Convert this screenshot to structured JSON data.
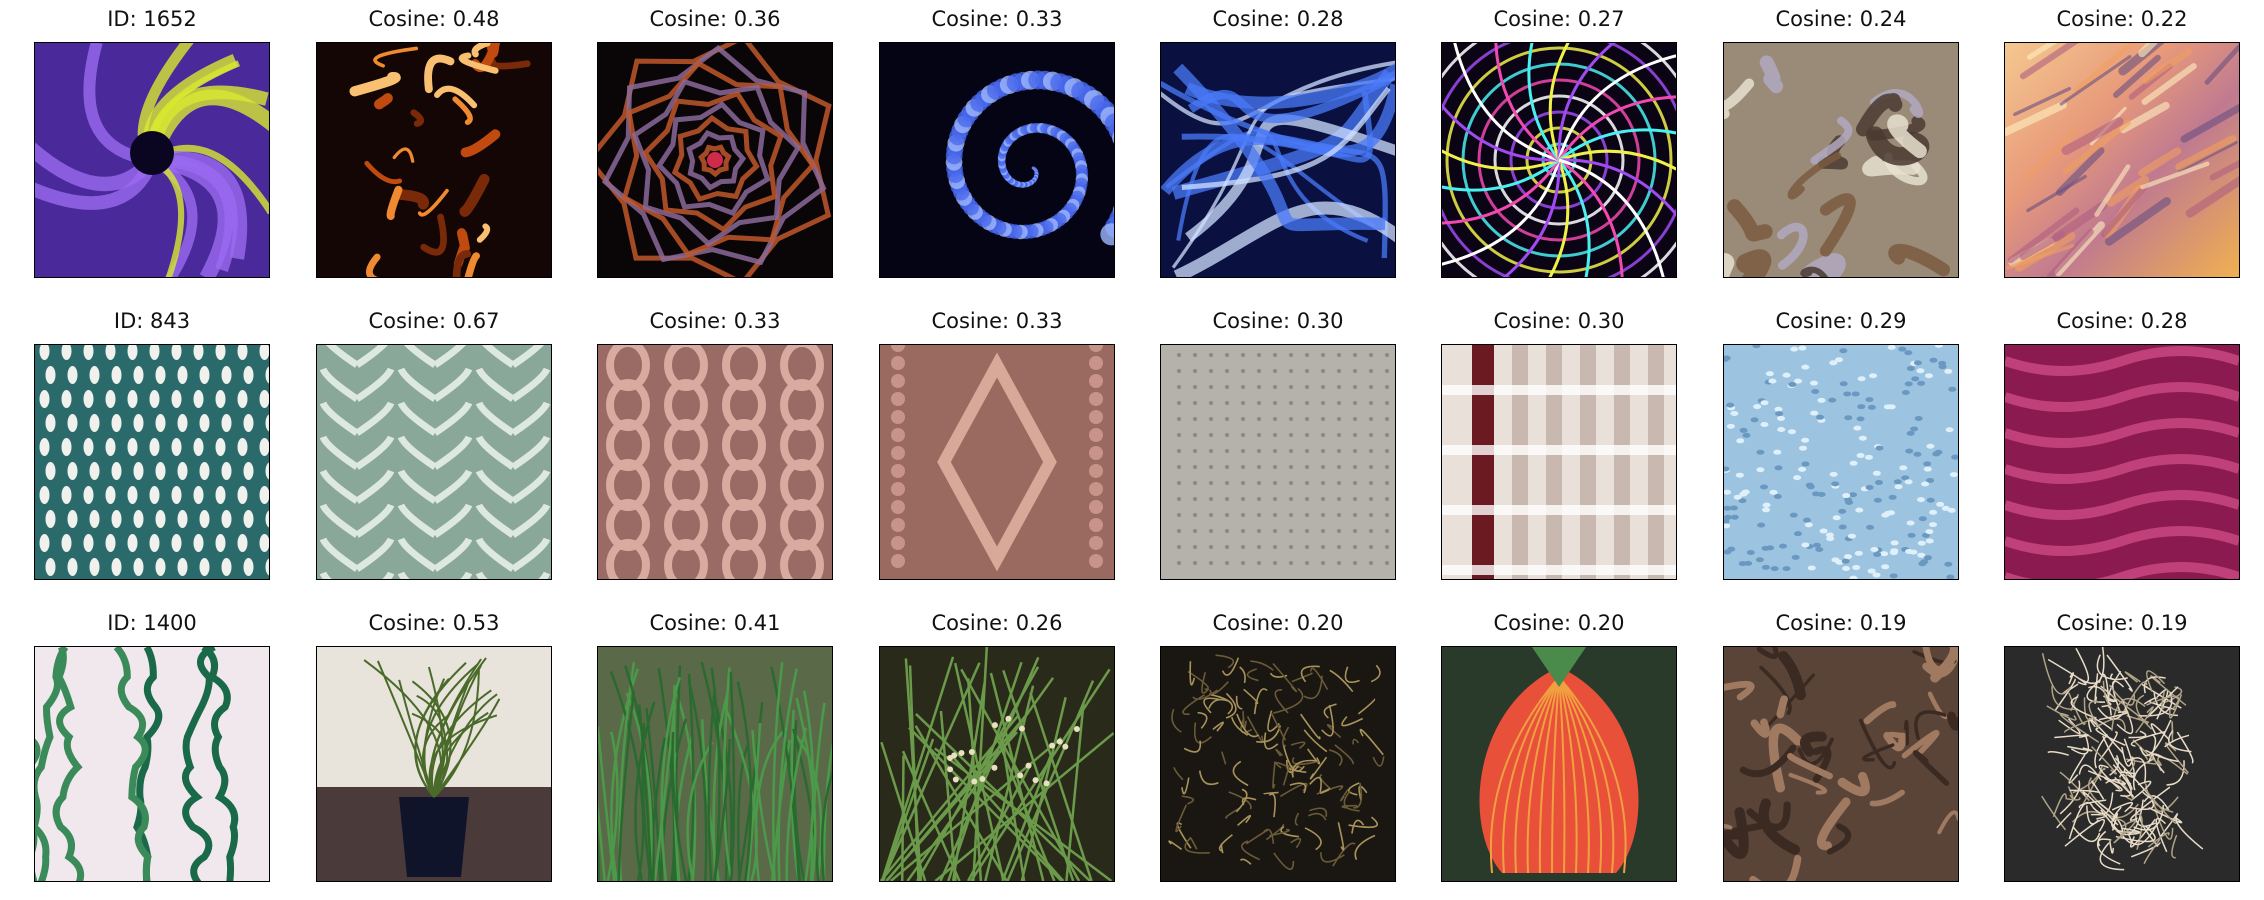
{
  "rows": [
    {
      "tiles": [
        {
          "title": "ID: 1652",
          "depicts": "purple-yellow-fractal"
        },
        {
          "title": "Cosine: 0.48",
          "depicts": "orange-fiery-fractal"
        },
        {
          "title": "Cosine: 0.36",
          "depicts": "dark-star-tunnel"
        },
        {
          "title": "Cosine: 0.33",
          "depicts": "blue-spiral-fractal"
        },
        {
          "title": "Cosine: 0.28",
          "depicts": "blue-light-swirls"
        },
        {
          "title": "Cosine: 0.27",
          "depicts": "psychedelic-spiral-web"
        },
        {
          "title": "Cosine: 0.24",
          "depicts": "marbled-swirl-texture"
        },
        {
          "title": "Cosine: 0.22",
          "depicts": "sunset-streak-clouds"
        }
      ]
    },
    {
      "tiles": [
        {
          "title": "ID: 843",
          "depicts": "teal-lace-knit"
        },
        {
          "title": "Cosine: 0.67",
          "depicts": "pale-green-leaf-lace-knit"
        },
        {
          "title": "Cosine: 0.33",
          "depicts": "pink-cable-knit"
        },
        {
          "title": "Cosine: 0.33",
          "depicts": "pink-diamond-cable-knit"
        },
        {
          "title": "Cosine: 0.30",
          "depicts": "grey-lace-shawl"
        },
        {
          "title": "Cosine: 0.30",
          "depicts": "white-maroon-woven-fabric"
        },
        {
          "title": "Cosine: 0.29",
          "depicts": "light-blue-knit"
        },
        {
          "title": "Cosine: 0.28",
          "depicts": "magenta-textured-knit"
        }
      ]
    },
    {
      "tiles": [
        {
          "title": "ID: 1400",
          "depicts": "curly-green-stems"
        },
        {
          "title": "Cosine: 0.53",
          "depicts": "potted-corkscrew-rush"
        },
        {
          "title": "Cosine: 0.41",
          "depicts": "green-rush-grass-clump"
        },
        {
          "title": "Cosine: 0.26",
          "depicts": "rush-flowers-in-grass"
        },
        {
          "title": "Cosine: 0.20",
          "depicts": "dried-root-mass"
        },
        {
          "title": "Cosine: 0.20",
          "depicts": "red-veined-flower-bell"
        },
        {
          "title": "Cosine: 0.19",
          "depicts": "brown-tangled-roots"
        },
        {
          "title": "Cosine: 0.19",
          "depicts": "white-root-ball"
        }
      ]
    }
  ],
  "colors": {
    "purple-yellow-fractal": "#6a3bd0",
    "orange-fiery-fractal": "#c45a1a",
    "dark-star-tunnel": "#2a1418",
    "blue-spiral-fractal": "#1a2a9a",
    "blue-light-swirls": "#2a4ad8",
    "psychedelic-spiral-web": "#3a1a6a",
    "marbled-swirl-texture": "#8a8070",
    "sunset-streak-clouds": "#e8a070",
    "teal-lace-knit": "#3a8a8a",
    "pale-green-leaf-lace-knit": "#a8c0b4",
    "pink-cable-knit": "#b88880",
    "pink-diamond-cable-knit": "#b48478",
    "grey-lace-shawl": "#a8a8a0",
    "white-maroon-woven-fabric": "#e8ddd8",
    "light-blue-knit": "#8ab8d8",
    "magenta-textured-knit": "#a02a60",
    "curly-green-stems": "#f0e4e8",
    "potted-corkscrew-rush": "#6a8a4a",
    "green-rush-grass-clump": "#3a7a40",
    "rush-flowers-in-grass": "#4a6a3a",
    "dried-root-mass": "#8a7a50",
    "red-veined-flower-bell": "#e04a3a",
    "brown-tangled-roots": "#7a5a48",
    "white-root-ball": "#d8d0c0"
  }
}
